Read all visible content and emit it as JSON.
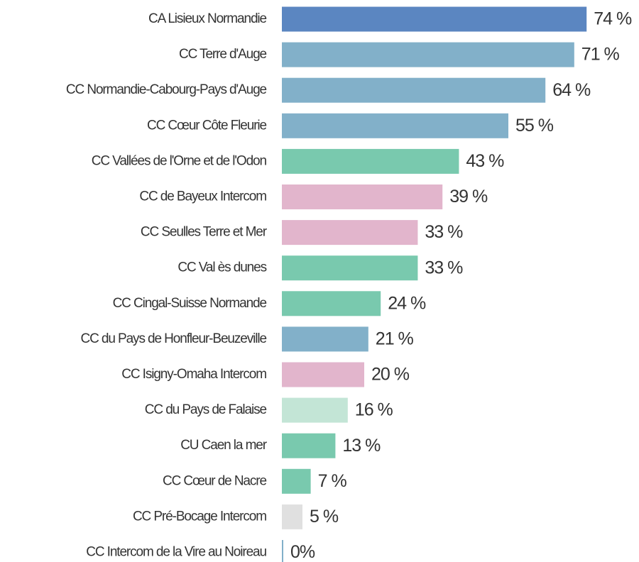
{
  "chart_data": {
    "type": "bar",
    "orientation": "horizontal",
    "categories": [
      "CA Lisieux Normandie",
      "CC Terre d'Auge",
      "CC Normandie-Cabourg-Pays d'Auge",
      "CC Cœur Côte Fleurie",
      "CC Vallées de l'Orne et de l'Odon",
      "CC de Bayeux Intercom",
      "CC Seulles Terre et Mer",
      "CC Val ès dunes",
      "CC Cingal-Suisse Normande",
      "CC du Pays de Honfleur-Beuzeville",
      "CC Isigny-Omaha Intercom",
      "CC du Pays de Falaise",
      "CU Caen la mer",
      "CC Cœur de Nacre",
      "CC Pré-Bocage Intercom",
      "CC Intercom de la Vire au Noireau"
    ],
    "values": [
      74,
      71,
      64,
      55,
      43,
      39,
      33,
      33,
      24,
      21,
      20,
      16,
      13,
      7,
      5,
      0
    ],
    "value_labels": [
      "74 %",
      "71 %",
      "64 %",
      "55 %",
      "43 %",
      "39 %",
      "33 %",
      "33 %",
      "24 %",
      "21 %",
      "20 %",
      "16 %",
      "13 %",
      "7 %",
      "5 %",
      "0%"
    ],
    "colors": [
      "#5b86c1",
      "#82b0c9",
      "#82b0c9",
      "#82b0c9",
      "#79c9ae",
      "#e2b5cc",
      "#e2b5cc",
      "#79c9ae",
      "#79c9ae",
      "#82b0c9",
      "#e2b5cc",
      "#c3e5d6",
      "#79c9ae",
      "#79c9ae",
      "#e0e0e0",
      "#82b0c9"
    ]
  }
}
